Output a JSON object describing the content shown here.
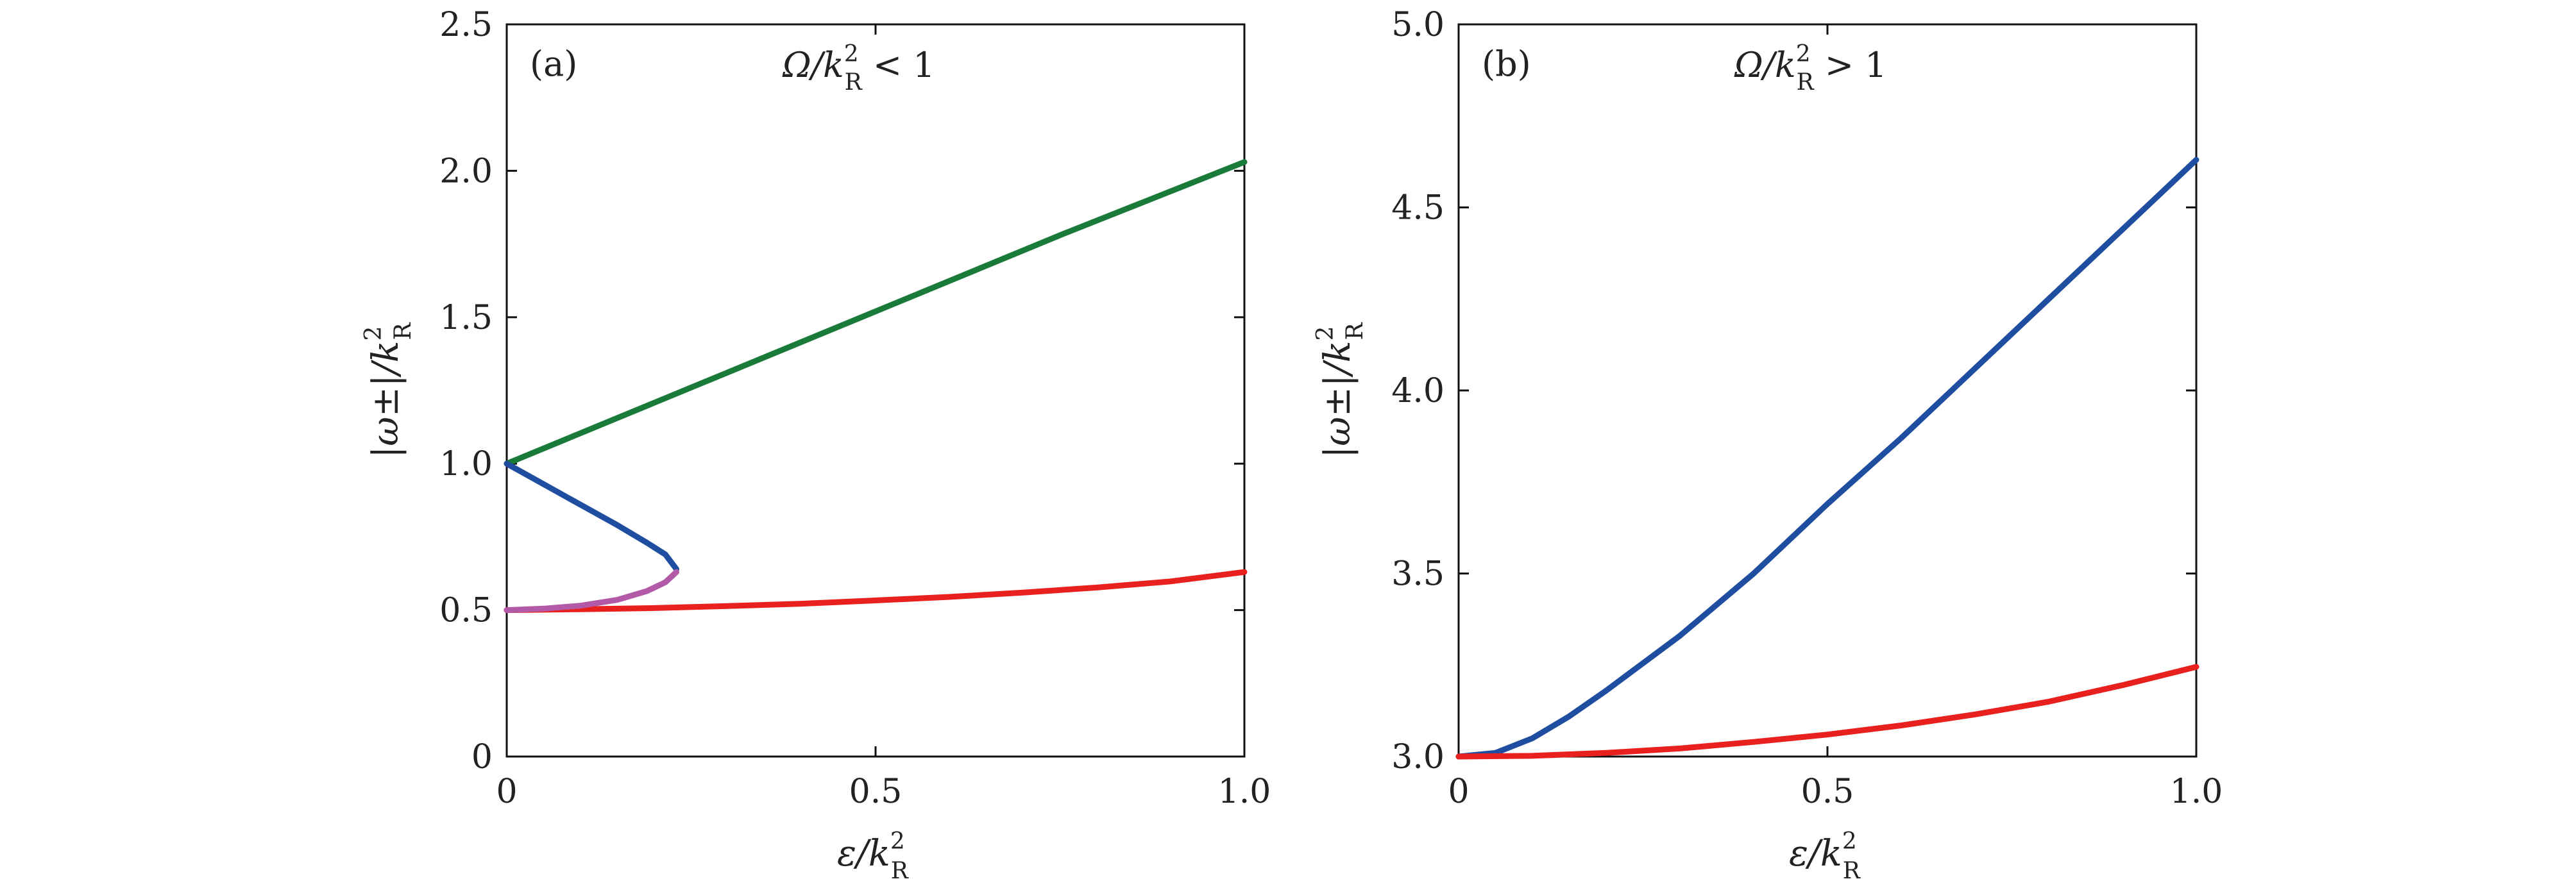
{
  "chart_data": [
    {
      "type": "line",
      "panel_label": "(a)",
      "condition": {
        "lhs_italic": "Ω",
        "lhs_rest": "/k",
        "sup": "2",
        "sub": "R",
        "relation": "< 1"
      },
      "xlabel": {
        "main": "ε/k",
        "sup": "2",
        "sub": "R"
      },
      "ylabel": {
        "main": "|ω±|/k",
        "sup": "2",
        "sub": "R"
      },
      "xlim": [
        0,
        1.0
      ],
      "ylim": [
        0,
        2.5
      ],
      "xticks": [
        0,
        0.5,
        1.0
      ],
      "xtick_labels": [
        "0",
        "0.5",
        "1.0"
      ],
      "yticks": [
        0,
        0.5,
        1.0,
        1.5,
        2.0,
        2.5
      ],
      "ytick_labels": [
        "0",
        "0.5",
        "1.0",
        "1.5",
        "2.0",
        "2.5"
      ],
      "grid": false,
      "series": [
        {
          "color": "#1a7a3a",
          "x": [
            0,
            0.25,
            0.5,
            0.75,
            1.0
          ],
          "y": [
            1.0,
            1.26,
            1.52,
            1.78,
            2.03
          ]
        },
        {
          "color": "#1f4ea0",
          "x": [
            0,
            0.05,
            0.1,
            0.15,
            0.19,
            0.215,
            0.23
          ],
          "y": [
            1.0,
            0.93,
            0.86,
            0.79,
            0.73,
            0.69,
            0.64
          ]
        },
        {
          "color": "#e8201e",
          "x": [
            0,
            0.1,
            0.2,
            0.3,
            0.4,
            0.5,
            0.6,
            0.7,
            0.8,
            0.9,
            1.0
          ],
          "y": [
            0.5,
            0.503,
            0.507,
            0.514,
            0.522,
            0.533,
            0.545,
            0.56,
            0.577,
            0.598,
            0.63
          ]
        },
        {
          "color": "#b25aa8",
          "x": [
            0,
            0.05,
            0.1,
            0.15,
            0.19,
            0.215,
            0.23
          ],
          "y": [
            0.5,
            0.505,
            0.515,
            0.535,
            0.565,
            0.595,
            0.63
          ]
        }
      ]
    },
    {
      "type": "line",
      "panel_label": "(b)",
      "condition": {
        "lhs_italic": "Ω",
        "lhs_rest": "/k",
        "sup": "2",
        "sub": "R",
        "relation": "> 1"
      },
      "xlabel": {
        "main": "ε/k",
        "sup": "2",
        "sub": "R"
      },
      "ylabel": {
        "main": "|ω±|/k",
        "sup": "2",
        "sub": "R"
      },
      "xlim": [
        0,
        1.0
      ],
      "ylim": [
        3.0,
        5.0
      ],
      "xticks": [
        0,
        0.5,
        1.0
      ],
      "xtick_labels": [
        "0",
        "0.5",
        "1.0"
      ],
      "yticks": [
        3.0,
        3.5,
        4.0,
        4.5,
        5.0
      ],
      "ytick_labels": [
        "3.0",
        "3.5",
        "4.0",
        "4.5",
        "5.0"
      ],
      "grid": false,
      "series": [
        {
          "color": "#1f4ea0",
          "x": [
            0,
            0.05,
            0.1,
            0.15,
            0.2,
            0.3,
            0.4,
            0.5,
            0.6,
            0.7,
            0.8,
            0.9,
            1.0
          ],
          "y": [
            3.0,
            3.01,
            3.05,
            3.11,
            3.18,
            3.33,
            3.5,
            3.69,
            3.87,
            4.06,
            4.25,
            4.44,
            4.63
          ]
        },
        {
          "color": "#e8201e",
          "x": [
            0,
            0.1,
            0.2,
            0.3,
            0.4,
            0.5,
            0.6,
            0.7,
            0.8,
            0.9,
            1.0
          ],
          "y": [
            3.0,
            3.002,
            3.01,
            3.022,
            3.04,
            3.06,
            3.085,
            3.115,
            3.15,
            3.195,
            3.245
          ]
        }
      ]
    }
  ]
}
